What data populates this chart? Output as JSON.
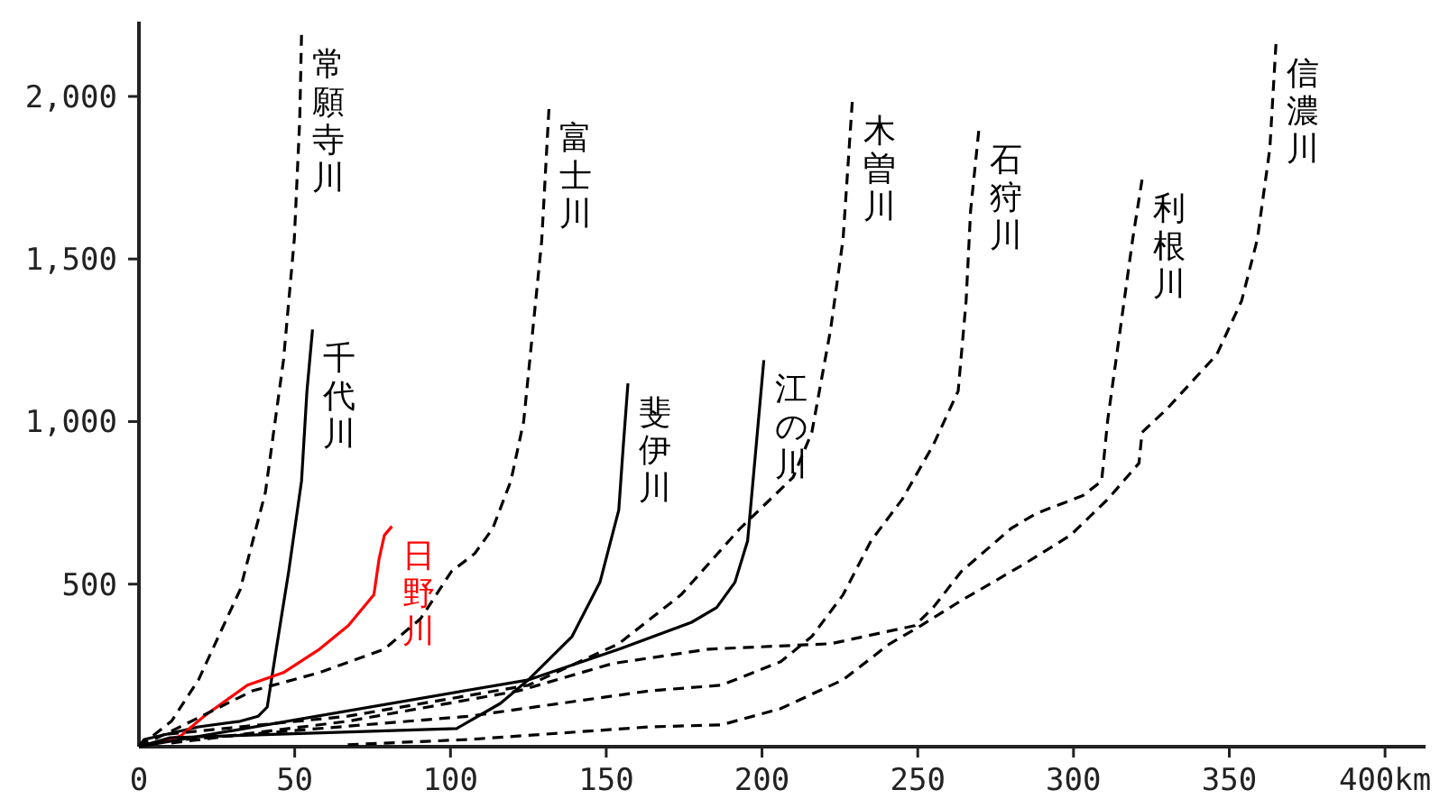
{
  "chart_data": {
    "type": "line",
    "xlim": [
      0,
      413
    ],
    "ylim": [
      0,
      2230
    ],
    "xticks": [
      0,
      50,
      100,
      150,
      200,
      250,
      300,
      350,
      {
        "value": 400,
        "label": "400km"
      }
    ],
    "yticks": [
      {
        "value": 500,
        "label": "500"
      },
      {
        "value": 1000,
        "label": "1,000"
      },
      {
        "value": 1500,
        "label": "1,500"
      },
      {
        "value": 2000,
        "label": "2,000"
      }
    ],
    "marker": "none",
    "grid": false,
    "series": [
      {
        "name": "常願寺川",
        "color": "#000000",
        "line_style": "dashed",
        "x": [
          0,
          10.4,
          19.1,
          32.5,
          40.6,
          46.4,
          49.9,
          51.6,
          52.2
        ],
        "values": [
          0,
          78,
          206,
          483,
          783,
          1189,
          1561,
          1928,
          2189
        ]
      },
      {
        "name": "千代川",
        "color": "#000000",
        "line_style": "solid",
        "x": [
          0,
          1.7,
          19.1,
          32.5,
          38.3,
          41.2,
          44.1,
          48.1,
          52.2,
          53.9,
          55.7
        ],
        "values": [
          0,
          22,
          61,
          78,
          94,
          122,
          300,
          539,
          817,
          1094,
          1283
        ]
      },
      {
        "name": "日野川",
        "color": "#ff0000",
        "line_style": "solid",
        "x": [
          0,
          13.3,
          20.9,
          34.8,
          46.4,
          58,
          67.2,
          75.4,
          77.1,
          78.8,
          81.2
        ],
        "values": [
          0,
          33,
          94,
          189,
          228,
          300,
          372,
          467,
          578,
          650,
          678
        ]
      },
      {
        "name": "富士川",
        "color": "#000000",
        "line_style": "dashed",
        "x": [
          0,
          13,
          36.5,
          58,
          78.8,
          90.4,
          100.3,
          107.8,
          113.6,
          119.4,
          123.5,
          126.4,
          129.3,
          131.6
        ],
        "values": [
          0,
          60,
          172,
          228,
          300,
          394,
          539,
          594,
          672,
          817,
          1000,
          1278,
          1556,
          1961
        ]
      },
      {
        "name": "斐伊川",
        "color": "#000000",
        "line_style": "solid",
        "x": [
          0,
          10,
          102,
          106,
          116,
          125,
          139,
          148,
          154,
          155.4,
          157
        ],
        "values": [
          0,
          28,
          56,
          78,
          133,
          206,
          339,
          506,
          728,
          917,
          1117
        ]
      },
      {
        "name": "江の川",
        "color": "#000000",
        "line_style": "solid",
        "x": [
          0,
          125.2,
          154.2,
          177.4,
          185.5,
          191.3,
          195.4,
          197.1,
          200.6
        ],
        "values": [
          0,
          206,
          300,
          383,
          428,
          506,
          633,
          817,
          1189
        ]
      },
      {
        "name": "木曽川",
        "color": "#000000",
        "line_style": "dashed",
        "x": [
          9.3,
          67,
          125,
          154,
          174,
          193,
          210,
          216,
          222,
          226,
          229
        ],
        "values": [
          39,
          94,
          189,
          317,
          467,
          672,
          828,
          967,
          1283,
          1561,
          1983
        ]
      },
      {
        "name": "石狩川",
        "color": "#000000",
        "line_style": "dashed",
        "x": [
          15.1,
          106,
          164,
          187,
          206,
          216,
          226,
          235,
          245,
          255,
          263,
          265.5,
          267,
          269.6
        ],
        "values": [
          22,
          94,
          172,
          189,
          261,
          339,
          467,
          633,
          761,
          928,
          1094,
          1372,
          1650,
          1894
        ]
      },
      {
        "name": "利根川",
        "color": "#000000",
        "line_style": "dashed",
        "x": [
          10.4,
          67,
          122,
          152,
          183,
          222,
          249,
          255,
          264,
          280,
          288,
          303,
          309,
          311,
          315,
          319,
          322
        ],
        "values": [
          11,
          78,
          172,
          256,
          300,
          317,
          372,
          428,
          539,
          672,
          717,
          772,
          817,
          1006,
          1283,
          1561,
          1744
        ]
      },
      {
        "name": "信濃川",
        "color": "#000000",
        "line_style": "dashed",
        "x": [
          67,
          106,
          164,
          187,
          206,
          226,
          241,
          251,
          264,
          284,
          299,
          311,
          321,
          322,
          330,
          346,
          354,
          359,
          363,
          365
        ],
        "values": [
          6,
          22,
          61,
          67,
          117,
          206,
          317,
          372,
          450,
          561,
          650,
          761,
          872,
          967,
          1039,
          1206,
          1372,
          1561,
          1839,
          2161
        ]
      }
    ]
  }
}
